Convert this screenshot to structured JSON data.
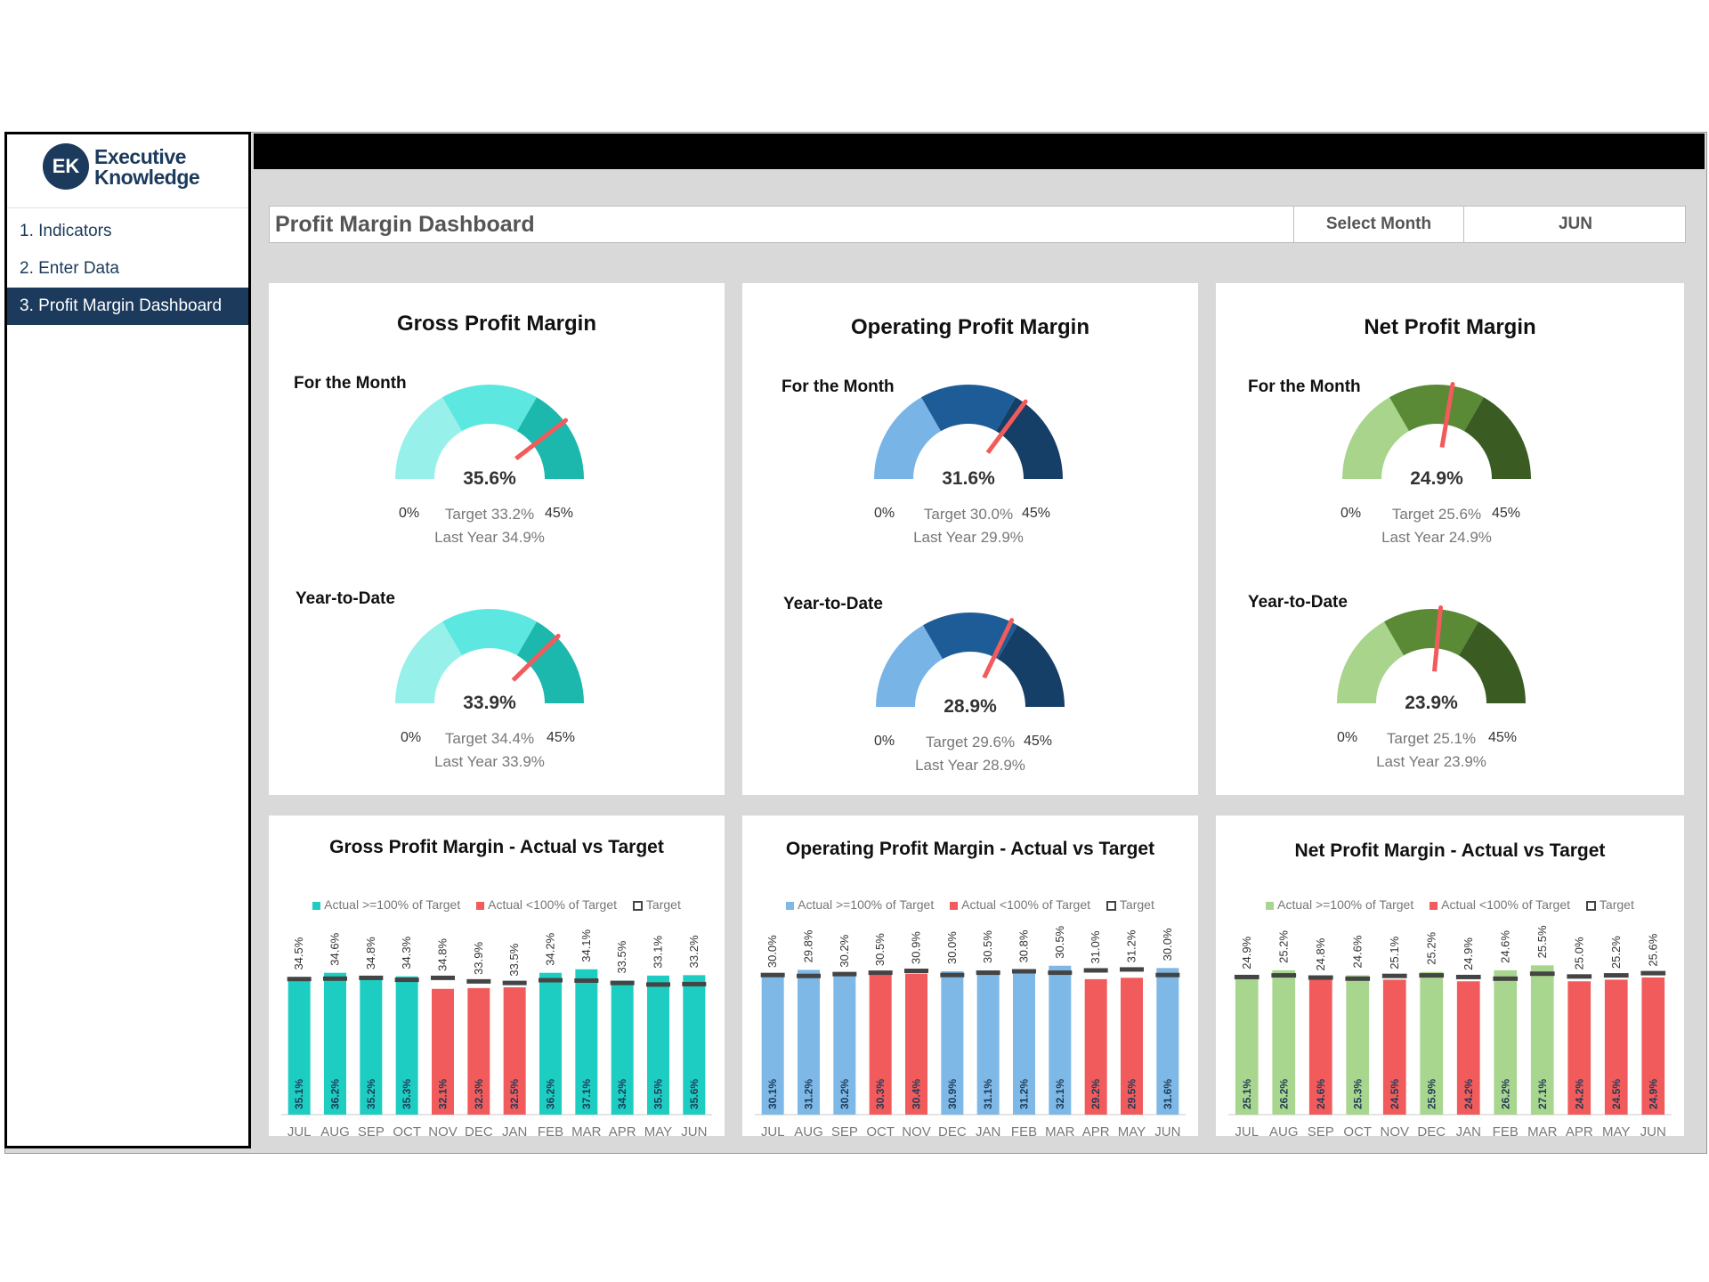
{
  "logo": {
    "badge": "EK",
    "line1": "Executive",
    "line2": "Knowledge"
  },
  "sidebar": {
    "items": [
      {
        "label": "1. Indicators"
      },
      {
        "label": "2. Enter Data"
      },
      {
        "label": "3. Profit Margin Dashboard"
      }
    ]
  },
  "header": {
    "title": "Profit Margin Dashboard",
    "select_label": "Select Month",
    "select_value": "JUN"
  },
  "gauges": [
    {
      "title": "Gross Profit Margin",
      "month": {
        "label": "For the Month",
        "value": "35.6%",
        "min": "0%",
        "max": "45%",
        "target": "Target 33.2%",
        "last_year": "Last Year 34.9%",
        "needle": 35.6
      },
      "ytd": {
        "label": "Year-to-Date",
        "value": "33.9%",
        "min": "0%",
        "max": "45%",
        "target": "Target 34.4%",
        "last_year": "Last Year 33.9%",
        "needle": 33.9
      }
    },
    {
      "title": "Operating Profit Margin",
      "month": {
        "label": "For the Month",
        "value": "31.6%",
        "min": "0%",
        "max": "45%",
        "target": "Target 30.0%",
        "last_year": "Last Year 29.9%",
        "needle": 31.6
      },
      "ytd": {
        "label": "Year-to-Date",
        "value": "28.9%",
        "min": "0%",
        "max": "45%",
        "target": "Target 29.6%",
        "last_year": "Last Year 28.9%",
        "needle": 28.9
      }
    },
    {
      "title": "Net Profit Margin",
      "month": {
        "label": "For the Month",
        "value": "24.9%",
        "min": "0%",
        "max": "45%",
        "target": "Target 25.6%",
        "last_year": "Last Year 24.9%",
        "needle": 24.9
      },
      "ytd": {
        "label": "Year-to-Date",
        "value": "23.9%",
        "min": "0%",
        "max": "45%",
        "target": "Target 25.1%",
        "last_year": "Last Year 23.9%",
        "needle": 23.9
      }
    }
  ],
  "colors": {
    "gross": {
      "c1": "#98f0ea",
      "c2": "#5ce8e0",
      "c3": "#1db8ad",
      "bar": "#1ecdc2"
    },
    "operating": {
      "c1": "#78b4e6",
      "c2": "#1d5c96",
      "c3": "#153f66",
      "bar": "#7db8e6"
    },
    "net": {
      "c1": "#a8d48c",
      "c2": "#5a8a35",
      "c3": "#3a5c22",
      "bar": "#a9d68f"
    },
    "below": "#f25b5b",
    "needle": "#f25b5b",
    "target_marker": "#444444"
  },
  "chart_data": [
    {
      "type": "bar",
      "title": "Gross Profit Margin - Actual vs Target",
      "legend": [
        "Actual >=100% of Target",
        "Actual <100% of Target",
        "Target"
      ],
      "categories": [
        "JUL",
        "AUG",
        "SEP",
        "OCT",
        "NOV",
        "DEC",
        "JAN",
        "FEB",
        "MAR",
        "APR",
        "MAY",
        "JUN"
      ],
      "series": [
        {
          "name": "Actual",
          "values": [
            35.1,
            36.2,
            35.2,
            35.3,
            32.1,
            32.3,
            32.5,
            36.2,
            37.1,
            34.2,
            35.5,
            35.6
          ]
        },
        {
          "name": "Target",
          "values": [
            34.5,
            34.6,
            34.8,
            34.3,
            34.8,
            33.9,
            33.5,
            34.2,
            34.1,
            33.5,
            33.1,
            33.2
          ]
        }
      ],
      "actual_labels": [
        "35.1%",
        "36.2%",
        "35.2%",
        "35.3%",
        "32.1%",
        "32.3%",
        "32.5%",
        "36.2%",
        "37.1%",
        "34.2%",
        "35.5%",
        "35.6%"
      ],
      "target_labels": [
        "34.5%",
        "34.6%",
        "34.8%",
        "34.3%",
        "34.8%",
        "33.9%",
        "33.5%",
        "34.2%",
        "34.1%",
        "33.5%",
        "33.1%",
        "33.2%"
      ],
      "ylim": [
        0,
        45
      ]
    },
    {
      "type": "bar",
      "title": "Operating Profit Margin - Actual vs Target",
      "legend": [
        "Actual >=100% of Target",
        "Actual <100% of Target",
        "Target"
      ],
      "categories": [
        "JUL",
        "AUG",
        "SEP",
        "OCT",
        "NOV",
        "DEC",
        "JAN",
        "FEB",
        "MAR",
        "APR",
        "MAY",
        "JUN"
      ],
      "series": [
        {
          "name": "Actual",
          "values": [
            30.1,
            31.2,
            30.2,
            30.3,
            30.4,
            30.9,
            31.1,
            31.2,
            32.1,
            29.2,
            29.5,
            31.6
          ]
        },
        {
          "name": "Target",
          "values": [
            30.0,
            29.8,
            30.2,
            30.5,
            30.9,
            30.0,
            30.5,
            30.8,
            30.5,
            31.0,
            31.2,
            30.0
          ]
        }
      ],
      "actual_labels": [
        "30.1%",
        "31.2%",
        "30.2%",
        "30.3%",
        "30.4%",
        "30.9%",
        "31.1%",
        "31.2%",
        "32.1%",
        "29.2%",
        "29.5%",
        "31.6%"
      ],
      "target_labels": [
        "30.0%",
        "29.8%",
        "30.2%",
        "30.5%",
        "30.9%",
        "30.0%",
        "30.5%",
        "30.8%",
        "30.5%",
        "31.0%",
        "31.2%",
        "30.0%"
      ],
      "ylim": [
        0,
        38
      ]
    },
    {
      "type": "bar",
      "title": "Net Profit Margin - Actual vs Target",
      "legend": [
        "Actual >=100% of Target",
        "Actual <100% of Target",
        "Target"
      ],
      "categories": [
        "JUL",
        "AUG",
        "SEP",
        "OCT",
        "NOV",
        "DEC",
        "JAN",
        "FEB",
        "MAR",
        "APR",
        "MAY",
        "JUN"
      ],
      "series": [
        {
          "name": "Actual",
          "values": [
            25.1,
            26.2,
            24.6,
            25.3,
            24.5,
            25.9,
            24.2,
            26.2,
            27.1,
            24.2,
            24.5,
            24.9
          ]
        },
        {
          "name": "Target",
          "values": [
            24.9,
            25.2,
            24.8,
            24.6,
            25.1,
            25.2,
            24.9,
            24.6,
            25.5,
            25.0,
            25.2,
            25.6
          ]
        }
      ],
      "actual_labels": [
        "25.1%",
        "26.2%",
        "24.6%",
        "25.3%",
        "24.5%",
        "25.9%",
        "24.2%",
        "26.2%",
        "27.1%",
        "24.2%",
        "24.5%",
        "24.9%"
      ],
      "target_labels": [
        "24.9%",
        "25.2%",
        "24.8%",
        "24.6%",
        "25.1%",
        "25.2%",
        "24.9%",
        "24.6%",
        "25.5%",
        "25.0%",
        "25.2%",
        "25.6%"
      ],
      "ylim": [
        0,
        32
      ]
    }
  ]
}
